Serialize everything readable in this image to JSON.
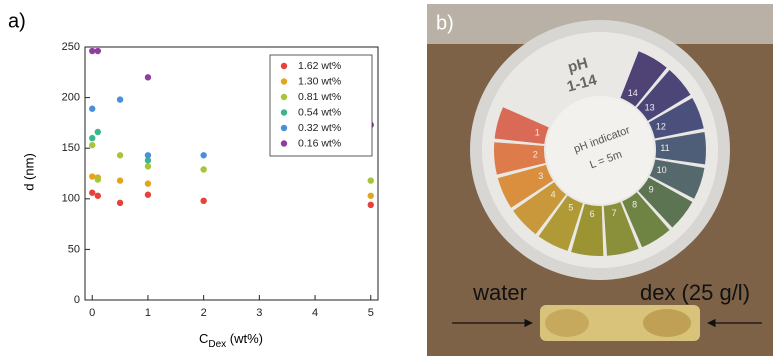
{
  "chart_data": {
    "type": "scatter",
    "panel_label": "a)",
    "x_label": "C",
    "x_label_sub": "Dex",
    "x_label_unit": " (wt%)",
    "y_label": "d (nm)",
    "xlim": [
      -0.13,
      5.13
    ],
    "xticks": [
      0,
      1,
      2,
      3,
      4,
      5
    ],
    "ylim": [
      0,
      250
    ],
    "yticks": [
      0,
      50,
      100,
      150,
      200,
      250
    ],
    "legend": "upper right",
    "series": [
      {
        "name": "1.62 wt%",
        "color": "#e8403a",
        "x": [
          0,
          0.1,
          0.5,
          1,
          2,
          5
        ],
        "values": [
          106,
          103,
          96,
          104,
          98,
          94
        ]
      },
      {
        "name": "1.30 wt%",
        "color": "#e3a51c",
        "x": [
          0,
          0.1,
          0.5,
          1,
          5
        ],
        "values": [
          122,
          121,
          118,
          115,
          103
        ]
      },
      {
        "name": "0.81 wt%",
        "color": "#a6c53a",
        "x": [
          0,
          0.1,
          0.5,
          1,
          2,
          5
        ],
        "values": [
          153,
          119,
          143,
          132,
          129,
          118
        ]
      },
      {
        "name": "0.54 wt%",
        "color": "#3bb58d",
        "x": [
          0,
          0.1,
          1
        ],
        "values": [
          160,
          166,
          138
        ]
      },
      {
        "name": "0.32 wt%",
        "color": "#4a90d9",
        "x": [
          0,
          0.5,
          1,
          2
        ],
        "values": [
          189,
          198,
          143,
          143
        ]
      },
      {
        "name": "0.16 wt%",
        "color": "#8e3f9e",
        "x": [
          0,
          0.1,
          1,
          5
        ],
        "values": [
          246,
          246,
          220,
          173
        ]
      }
    ]
  },
  "photo": {
    "panel_label": "b)",
    "brand": "pH",
    "range": "1-14",
    "center_title": "pH indicator",
    "center_length": "L = 5m",
    "wheel_labels": [
      "1",
      "2",
      "3",
      "4",
      "5",
      "6",
      "7",
      "8",
      "9",
      "10",
      "11",
      "12",
      "13",
      "14"
    ],
    "left_caption": "water",
    "right_caption": "dex (25 g/l)"
  }
}
